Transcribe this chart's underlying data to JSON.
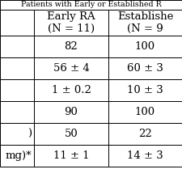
{
  "title": "Patients with Early or Established R",
  "col0_labels": [
    "",
    "",
    "",
    "",
    ")",
    "mg)*"
  ],
  "col1_header": "Early RA\n(N = 11)",
  "col2_header": "Establishe\n(N = 9",
  "rows_col1": [
    "82",
    "56 ± 4",
    "1 ± 0.2",
    "90",
    "50",
    "11 ± 1"
  ],
  "rows_col2": [
    "100",
    "60 ± 3",
    "10 ± 3",
    "100",
    "22",
    "14 ± 3"
  ],
  "background_color": "#ffffff",
  "font_size": 9.5
}
